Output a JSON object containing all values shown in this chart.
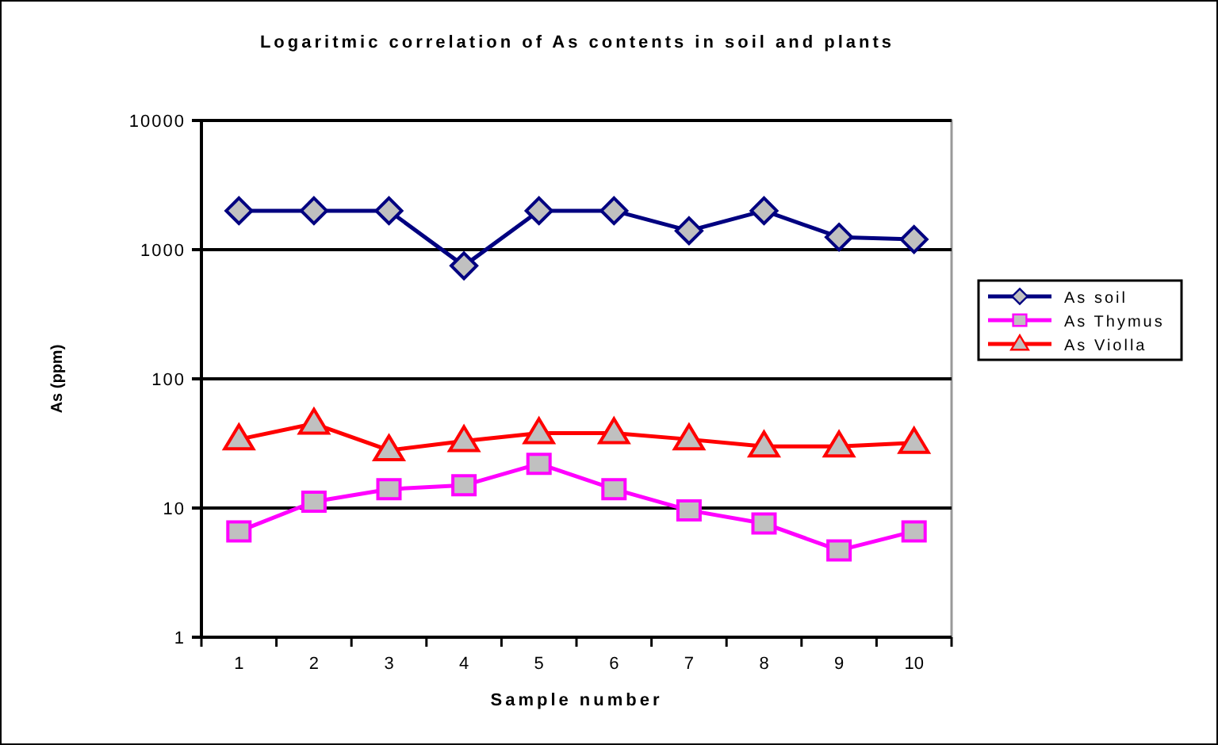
{
  "chart_data": {
    "type": "line",
    "title": "Logaritmic correlation of As contents in soil and plants",
    "xlabel": "Sample number",
    "ylabel": "As (ppm)",
    "categories": [
      "1",
      "2",
      "3",
      "4",
      "5",
      "6",
      "7",
      "8",
      "9",
      "10"
    ],
    "series": [
      {
        "name": "As soil",
        "color": "#000080",
        "marker": "diamond",
        "values": [
          2000,
          2000,
          2000,
          750,
          2000,
          2000,
          1400,
          2000,
          1250,
          1200
        ]
      },
      {
        "name": "As Thymus",
        "color": "#ff00ff",
        "marker": "square",
        "values": [
          6.6,
          11.2,
          14,
          15,
          22,
          14,
          9.6,
          7.6,
          4.7,
          6.6
        ]
      },
      {
        "name": "As Violla",
        "color": "#ff0000",
        "marker": "triangle",
        "values": [
          34,
          45,
          28,
          33,
          38,
          38,
          34,
          30,
          30,
          32
        ]
      }
    ],
    "log": true,
    "ylim": [
      1,
      10000
    ],
    "yticks": [
      1,
      10,
      100,
      1000,
      10000
    ],
    "grid": "y",
    "legend": "right",
    "line_style": "solid"
  }
}
